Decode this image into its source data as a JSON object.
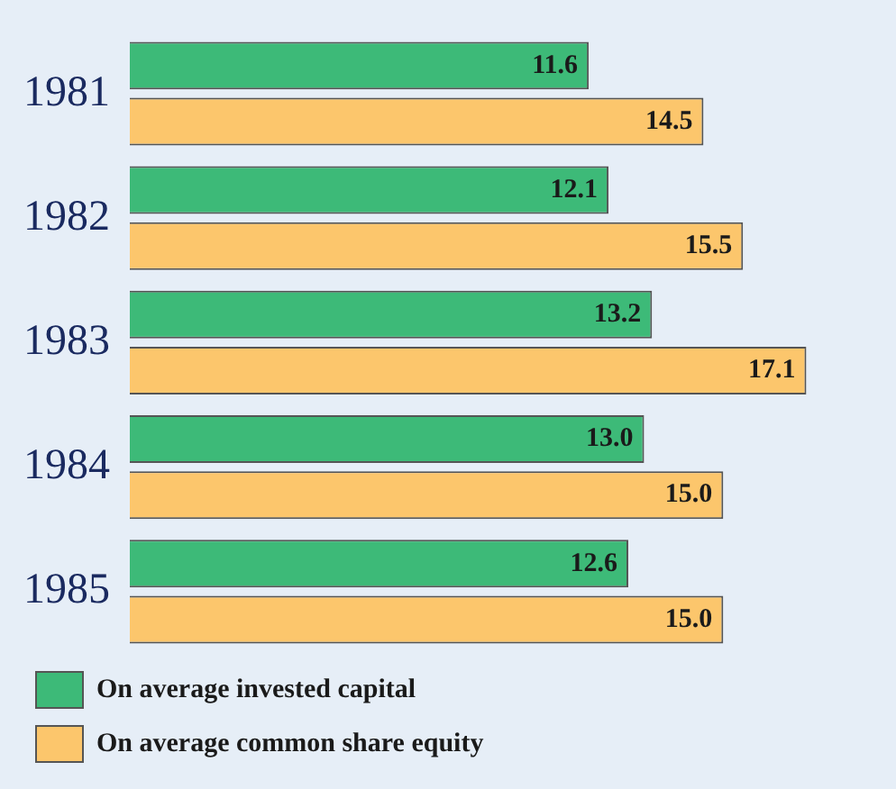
{
  "chart_data": {
    "type": "bar",
    "orientation": "horizontal",
    "categories": [
      "1981",
      "1982",
      "1983",
      "1984",
      "1985"
    ],
    "series": [
      {
        "name": "On average invested capital",
        "color": "#3dba78",
        "values": [
          11.6,
          12.1,
          13.2,
          13.0,
          12.6
        ],
        "value_labels": [
          "11.6",
          "12.1",
          "13.2",
          "13.0",
          "12.6"
        ]
      },
      {
        "name": "On average common share equity",
        "color": "#fcc66c",
        "values": [
          14.5,
          15.5,
          17.1,
          15.0,
          15.0
        ],
        "value_labels": [
          "14.5",
          "15.5",
          "17.1",
          "15.0",
          "15.0"
        ]
      }
    ],
    "legend": "bottom left"
  }
}
